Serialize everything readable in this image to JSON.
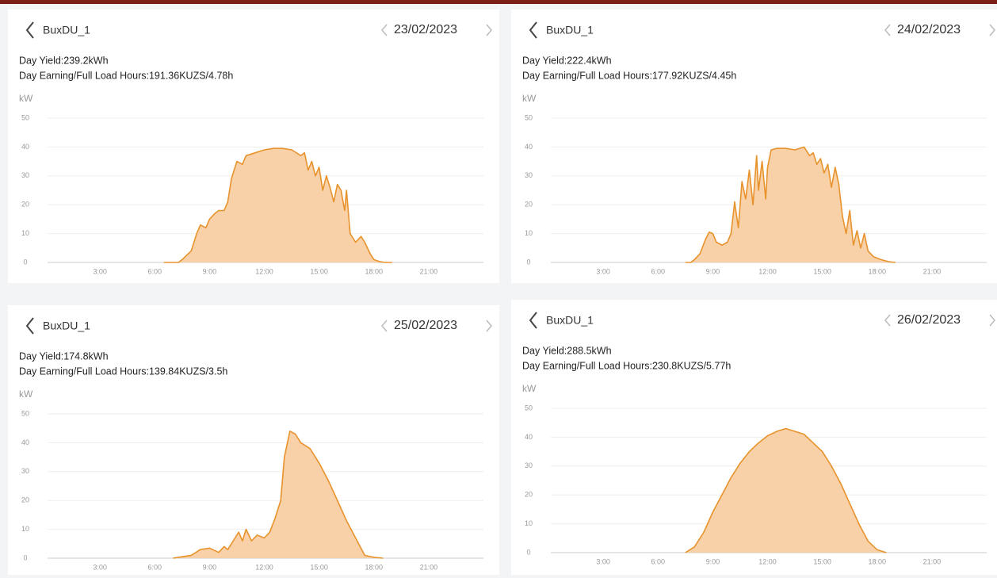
{
  "chart_data": [
    {
      "type": "area",
      "title": "BuxDU_1",
      "date": "23/02/2023",
      "annotations": [
        "Day Yield:239.2kWh",
        "Day Earning/Full Load Hours:191.36KUZS/4.78h"
      ],
      "y_label": "kW",
      "color": "#e8922c",
      "fill": "#f7c999",
      "xlim": [
        0,
        24
      ],
      "xticks": [
        {
          "value": 3,
          "label": "3:00"
        },
        {
          "value": 6,
          "label": "6:00"
        },
        {
          "value": 9,
          "label": "9:00"
        },
        {
          "value": 12,
          "label": "12:00"
        },
        {
          "value": 15,
          "label": "15:00"
        },
        {
          "value": 18,
          "label": "18:00"
        },
        {
          "value": 21,
          "label": "21:00"
        }
      ],
      "ylim": [
        0,
        50
      ],
      "yticks": [
        0,
        10,
        20,
        30,
        40,
        50
      ],
      "grid": true,
      "x": [
        6.5,
        7.3,
        7.5,
        8,
        8.3,
        8.5,
        8.8,
        9,
        9.3,
        9.5,
        9.8,
        10,
        10.2,
        10.5,
        10.8,
        11,
        11.5,
        12,
        12.5,
        13,
        13.5,
        14,
        14.2,
        14.4,
        14.6,
        14.8,
        15,
        15.2,
        15.4,
        15.6,
        15.8,
        16,
        16.2,
        16.4,
        16.5,
        16.7,
        17,
        17.3,
        17.5,
        17.8,
        18,
        18.3,
        18.6,
        19
      ],
      "values": [
        0,
        0,
        1,
        4,
        10,
        13,
        12,
        15,
        17,
        18,
        18,
        21,
        29,
        35,
        34,
        37,
        38,
        39,
        39.5,
        39.5,
        39,
        37,
        38,
        32,
        35,
        30,
        33,
        25,
        30,
        26,
        21,
        27,
        25,
        18,
        25,
        10,
        7,
        9,
        7,
        3,
        1,
        0.3,
        0,
        0
      ]
    },
    {
      "type": "area",
      "title": "BuxDU_1",
      "date": "24/02/2023",
      "annotations": [
        "Day Yield:222.4kWh",
        "Day Earning/Full Load Hours:177.92KUZS/4.45h"
      ],
      "y_label": "kW",
      "color": "#e8922c",
      "fill": "#f7c999",
      "xlim": [
        0,
        24
      ],
      "xticks": [
        {
          "value": 3,
          "label": "3:00"
        },
        {
          "value": 6,
          "label": "6:00"
        },
        {
          "value": 9,
          "label": "9:00"
        },
        {
          "value": 12,
          "label": "12:00"
        },
        {
          "value": 15,
          "label": "15:00"
        },
        {
          "value": 18,
          "label": "18:00"
        },
        {
          "value": 21,
          "label": "21:00"
        }
      ],
      "ylim": [
        0,
        50
      ],
      "yticks": [
        0,
        10,
        20,
        30,
        40,
        50
      ],
      "grid": true,
      "x": [
        7.5,
        7.8,
        8,
        8.3,
        8.6,
        8.8,
        9,
        9.2,
        9.5,
        9.8,
        10,
        10.2,
        10.4,
        10.6,
        10.8,
        11,
        11.2,
        11.4,
        11.5,
        11.7,
        11.9,
        12,
        12.2,
        12.5,
        13,
        13.5,
        14,
        14.3,
        14.5,
        14.7,
        14.9,
        15.1,
        15.3,
        15.5,
        15.7,
        15.9,
        16.1,
        16.3,
        16.5,
        16.7,
        16.9,
        17.1,
        17.3,
        17.5,
        17.8,
        18.2,
        18.6,
        19
      ],
      "values": [
        0,
        0,
        1,
        3,
        8,
        10.5,
        10,
        7,
        6,
        7,
        10,
        21,
        12,
        28,
        22,
        32,
        20,
        37,
        25,
        35,
        22,
        33,
        39,
        39.5,
        39.5,
        39,
        40,
        37,
        38,
        34,
        36,
        31,
        34,
        26,
        33,
        27,
        16,
        10,
        18,
        6,
        11,
        5,
        10,
        4,
        2,
        1,
        0.3,
        0
      ]
    },
    {
      "type": "area",
      "title": "BuxDU_1",
      "date": "25/02/2023",
      "annotations": [
        "Day Yield:174.8kWh",
        "Day Earning/Full Load Hours:139.84KUZS/3.5h"
      ],
      "y_label": "kW",
      "color": "#e8922c",
      "fill": "#f7c999",
      "xlim": [
        0,
        24
      ],
      "xticks": [
        {
          "value": 3,
          "label": "3:00"
        },
        {
          "value": 6,
          "label": "6:00"
        },
        {
          "value": 9,
          "label": "9:00"
        },
        {
          "value": 12,
          "label": "12:00"
        },
        {
          "value": 15,
          "label": "15:00"
        },
        {
          "value": 18,
          "label": "18:00"
        },
        {
          "value": 21,
          "label": "21:00"
        }
      ],
      "ylim": [
        0,
        50
      ],
      "yticks": [
        0,
        10,
        20,
        30,
        40,
        50
      ],
      "grid": true,
      "x": [
        7,
        7.5,
        8,
        8.5,
        9,
        9.5,
        9.8,
        10,
        10.3,
        10.6,
        10.8,
        11,
        11.3,
        11.6,
        12,
        12.3,
        12.6,
        12.9,
        13.1,
        13.4,
        13.7,
        14,
        14.5,
        15,
        15.5,
        16,
        16.5,
        17,
        17.5,
        18,
        18.5
      ],
      "values": [
        0,
        0.5,
        1,
        3,
        3.5,
        2,
        4,
        3,
        6,
        9,
        6,
        10,
        6,
        8,
        7,
        9,
        14,
        20,
        35,
        44,
        43,
        40,
        38,
        33,
        27,
        20,
        13,
        7,
        1,
        0.3,
        0
      ]
    },
    {
      "type": "area",
      "title": "BuxDU_1",
      "date": "26/02/2023",
      "annotations": [
        "Day Yield:288.5kWh",
        "Day Earning/Full Load Hours:230.8KUZS/5.77h"
      ],
      "y_label": "kW",
      "color": "#e8922c",
      "fill": "#f7c999",
      "xlim": [
        0,
        24
      ],
      "xticks": [
        {
          "value": 3,
          "label": "3:00"
        },
        {
          "value": 6,
          "label": "6:00"
        },
        {
          "value": 9,
          "label": "9:00"
        },
        {
          "value": 12,
          "label": "12:00"
        },
        {
          "value": 15,
          "label": "15:00"
        },
        {
          "value": 18,
          "label": "18:00"
        },
        {
          "value": 21,
          "label": "21:00"
        }
      ],
      "ylim": [
        0,
        50
      ],
      "yticks": [
        0,
        10,
        20,
        30,
        40,
        50
      ],
      "grid": true,
      "x": [
        7.5,
        8,
        8.5,
        9,
        9.5,
        10,
        10.5,
        11,
        11.5,
        12,
        12.5,
        13,
        13.5,
        14,
        14.5,
        15,
        15.5,
        16,
        16.5,
        17,
        17.5,
        18,
        18.5
      ],
      "values": [
        0,
        2,
        7,
        14,
        20,
        26,
        31,
        35,
        38,
        40.5,
        42,
        43,
        42,
        41,
        38,
        35,
        30,
        24,
        17,
        10,
        4,
        1,
        0
      ]
    }
  ]
}
